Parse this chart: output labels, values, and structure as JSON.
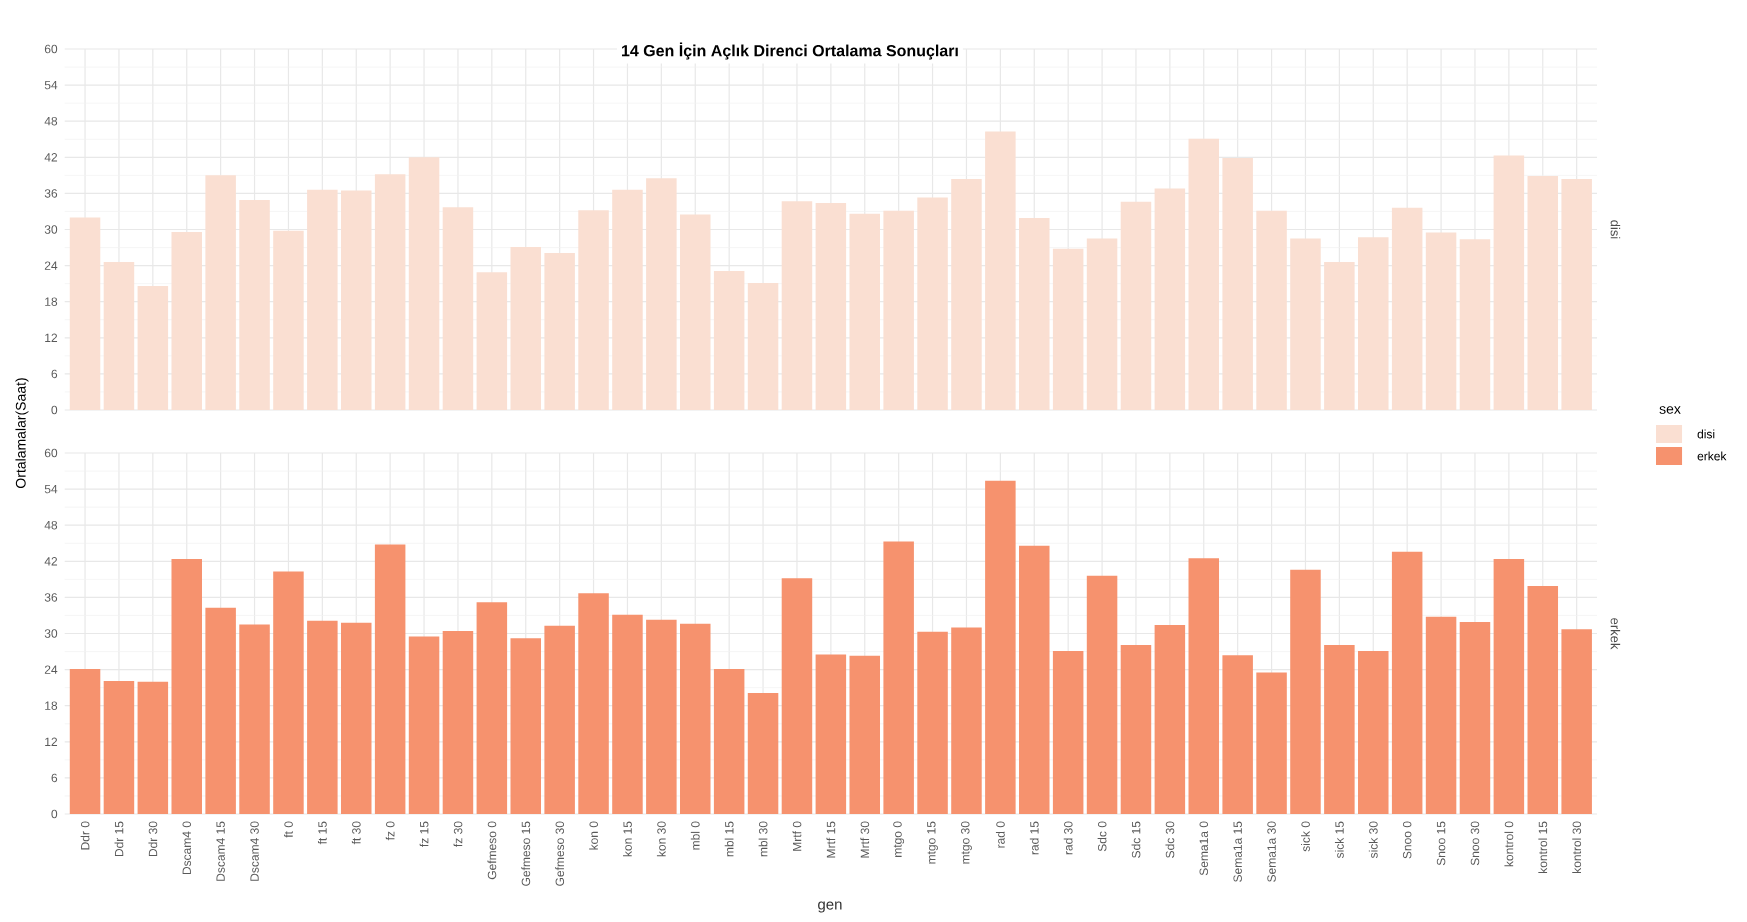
{
  "chart_data": [
    {
      "type": "bar",
      "title": "14 Gen İçin Açlık Direnci Ortalama Sonuçları",
      "ylabel": "Ortalamalar(Saat)",
      "legend_title": "sex",
      "legend": "right",
      "grid": true,
      "tick_labels": "y",
      "categories": [
        null,
        null,
        null,
        null,
        null,
        null,
        null,
        null,
        null,
        null,
        null,
        null,
        null,
        null,
        null,
        null,
        null,
        null,
        null,
        null,
        null,
        null,
        null,
        null,
        null,
        null,
        null,
        null,
        null,
        null,
        null,
        null,
        null,
        null,
        null,
        null,
        null,
        null,
        null,
        null,
        null,
        null,
        null,
        null,
        null
      ],
      "ylim": [
        0,
        60
      ],
      "yticks": [
        0,
        6,
        12,
        18,
        24,
        30,
        36,
        42,
        48,
        54,
        60
      ],
      "series": [
        {
          "name": "disi",
          "color": "#fadfd2",
          "values": [
            32.0,
            24.6,
            20.6,
            29.6,
            39.0,
            34.9,
            29.8,
            36.6,
            36.5,
            39.2,
            42.0,
            33.7,
            22.9,
            27.1,
            26.1,
            33.2,
            36.6,
            38.5,
            32.5,
            23.1,
            21.1,
            34.7,
            34.4,
            32.6,
            33.1,
            35.3,
            38.4,
            46.3,
            31.9,
            26.8,
            28.5,
            34.6,
            36.8,
            45.1,
            41.9,
            33.1,
            28.5,
            24.6,
            28.7,
            33.6,
            29.5,
            28.4,
            42.3,
            38.9,
            38.4
          ]
        }
      ]
    },
    {
      "type": "bar",
      "xlabel": "gen",
      "legend": "right",
      "grid": true,
      "categories": [
        "Ddr 0",
        "Ddr 15",
        "Ddr 30",
        "Dscam4 0",
        "Dscam4 15",
        "Dscam4 30",
        "ft 0",
        "ft 15",
        "ft 30",
        "fz 0",
        "fz 15",
        "fz 30",
        "Gefmeso 0",
        "Gefmeso 15",
        "Gefmeso 30",
        "kon 0",
        "kon 15",
        "kon 30",
        "mbl 0",
        "mbl 15",
        "mbl 30",
        "Mrtf 0",
        "Mrtf 15",
        "Mrtf 30",
        "mtgo 0",
        "mtgo 15",
        "mtgo 30",
        "rad 0",
        "rad 15",
        "rad 30",
        "Sdc 0",
        "Sdc 15",
        "Sdc 30",
        "Sema1a 0",
        "Sema1a 15",
        "Sema1a 30",
        "sick 0",
        "sick 15",
        "sick 30",
        "Snoo 0",
        "Snoo 15",
        "Snoo 30",
        "kontrol 0",
        "kontrol 15",
        "kontrol 30"
      ],
      "ylim": [
        0,
        60
      ],
      "yticks": [
        0,
        6,
        12,
        18,
        24,
        30,
        36,
        42,
        48,
        54,
        60
      ],
      "series": [
        {
          "name": "erkek",
          "color": "#f6926e",
          "values": [
            24.1,
            22.1,
            22.0,
            42.4,
            34.3,
            31.5,
            40.3,
            32.1,
            31.8,
            44.8,
            29.5,
            30.4,
            35.2,
            29.2,
            31.3,
            36.7,
            33.1,
            32.3,
            31.6,
            24.1,
            20.1,
            39.2,
            26.5,
            26.3,
            45.3,
            30.3,
            31.0,
            55.4,
            44.6,
            27.1,
            39.6,
            28.1,
            31.4,
            42.5,
            26.4,
            23.5,
            40.6,
            28.1,
            27.1,
            43.6,
            32.8,
            31.9,
            42.4,
            37.9,
            30.7
          ]
        }
      ]
    }
  ]
}
